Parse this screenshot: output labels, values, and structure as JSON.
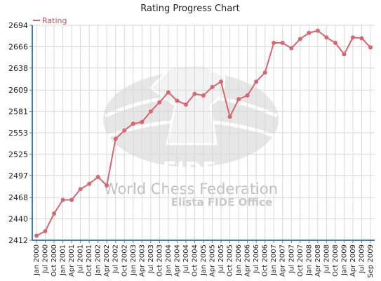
{
  "chart_data": {
    "type": "line",
    "title": "Rating Progress Chart",
    "xlabel": "",
    "ylabel": "",
    "legend_position": "top-left",
    "grid": true,
    "ylim": [
      2412,
      2694
    ],
    "yticks": [
      2412,
      2440,
      2468,
      2497,
      2525,
      2553,
      2581,
      2609,
      2638,
      2666,
      2694
    ],
    "x_tick_labels": [
      "Jan 2000",
      "Jul 2000",
      "Oct 2000",
      "Jan 2001",
      "Apr 2001",
      "Jul 2001",
      "Oct 2001",
      "Jan 2002",
      "Apr 2002",
      "Jul 2002",
      "Oct 2002",
      "Jan 2003",
      "Apr 2003",
      "Jul 2003",
      "Oct 2003",
      "Jan 2004",
      "Apr 2004",
      "Jul 2004",
      "Oct 2004",
      "Jan 2005",
      "Apr 2005",
      "Jul 2005",
      "Oct 2005",
      "Jan 2006",
      "Apr 2006",
      "Jul 2006",
      "Oct 2006",
      "Jan 2007",
      "Apr 2007",
      "Jul 2007",
      "Oct 2007",
      "Jan 2008",
      "Apr 2008",
      "Jul 2008",
      "Oct 2008",
      "Jan 2009",
      "Apr 2009",
      "Jul 2009",
      "Sep 2009"
    ],
    "series": [
      {
        "name": "Rating",
        "color": "#d9666f",
        "values": [
          2418,
          2424,
          2447,
          2465,
          2465,
          2479,
          2486,
          2495,
          2484,
          2545,
          2556,
          2565,
          2567,
          2581,
          2593,
          2606,
          2595,
          2590,
          2604,
          2602,
          2613,
          2620,
          2574,
          2597,
          2602,
          2620,
          2632,
          2671,
          2671,
          2664,
          2676,
          2684,
          2687,
          2678,
          2671,
          2656,
          2678,
          2677,
          2665
        ]
      }
    ]
  },
  "watermark": {
    "line1": "World Chess Federation",
    "line2": "Elista FIDE Office",
    "logo_text": "FIDE"
  },
  "colors": {
    "axis": "#3d7bbf",
    "grid": "#d8d8d8",
    "series": "#d9666f",
    "watermark": "#e3e3e3"
  }
}
